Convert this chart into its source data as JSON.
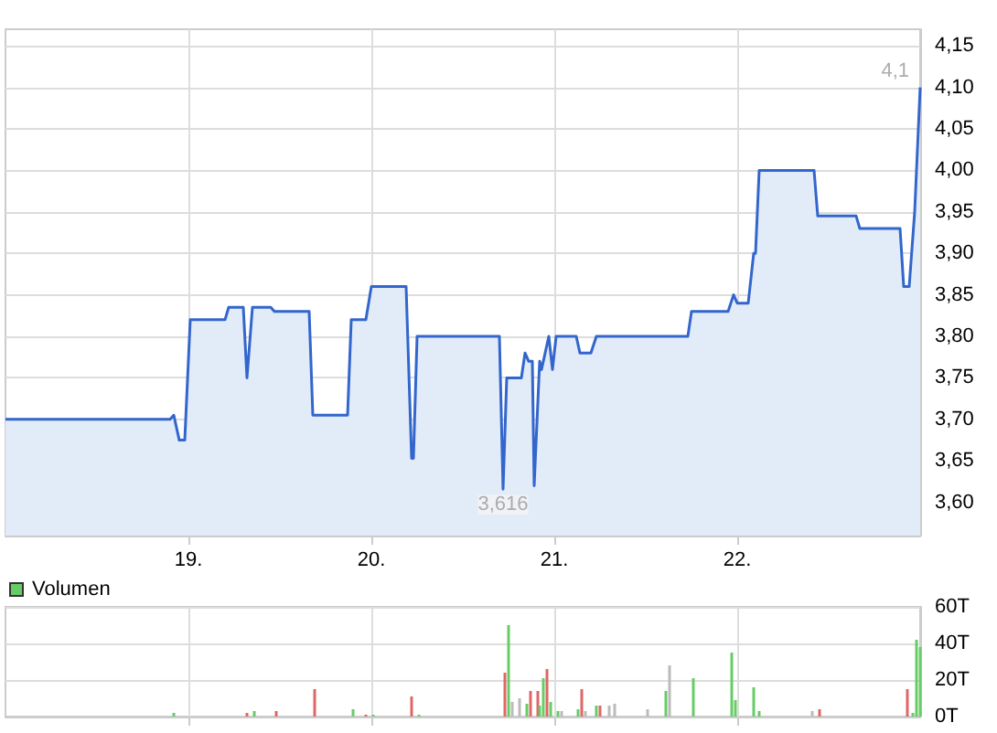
{
  "chart_data": [
    {
      "type": "area",
      "color": "#3366cc",
      "x": [
        18.0,
        18.9,
        18.92,
        18.95,
        18.98,
        19.01,
        19.2,
        19.22,
        19.3,
        19.32,
        19.35,
        19.45,
        19.47,
        19.66,
        19.68,
        19.87,
        19.89,
        19.97,
        20.0,
        20.19,
        20.22,
        20.23,
        20.25,
        20.7,
        20.72,
        20.74,
        20.82,
        20.84,
        20.86,
        20.88,
        20.89,
        20.92,
        20.93,
        20.97,
        20.99,
        21.01,
        21.12,
        21.14,
        21.2,
        21.23,
        21.59,
        21.6,
        21.73,
        21.75,
        21.95,
        21.98,
        22.0,
        22.06,
        22.09,
        22.1,
        22.12,
        22.42,
        22.44,
        22.65,
        22.67,
        22.89,
        22.91,
        22.94,
        22.97,
        23.0
      ],
      "values": [
        3.7,
        3.7,
        3.705,
        3.675,
        3.675,
        3.82,
        3.82,
        3.835,
        3.835,
        3.75,
        3.835,
        3.835,
        3.83,
        3.83,
        3.705,
        3.705,
        3.82,
        3.82,
        3.86,
        3.86,
        3.653,
        3.653,
        3.8,
        3.8,
        3.616,
        3.75,
        3.75,
        3.78,
        3.77,
        3.77,
        3.62,
        3.77,
        3.76,
        3.8,
        3.76,
        3.8,
        3.8,
        3.78,
        3.78,
        3.8,
        3.8,
        3.8,
        3.8,
        3.83,
        3.83,
        3.85,
        3.84,
        3.84,
        3.9,
        3.9,
        4.0,
        4.0,
        3.945,
        3.945,
        3.93,
        3.93,
        3.86,
        3.86,
        3.95,
        4.1
      ],
      "xlim": [
        18,
        23
      ],
      "xticks": [
        {
          "value": 19,
          "label": "19."
        },
        {
          "value": 20,
          "label": "20."
        },
        {
          "value": 21,
          "label": "21."
        },
        {
          "value": 22,
          "label": "22."
        }
      ],
      "ylim": [
        3.56,
        4.17
      ],
      "yticks": [
        {
          "value": 3.6,
          "label": "3,60"
        },
        {
          "value": 3.65,
          "label": "3,65"
        },
        {
          "value": 3.7,
          "label": "3,70"
        },
        {
          "value": 3.75,
          "label": "3,75"
        },
        {
          "value": 3.8,
          "label": "3,80"
        },
        {
          "value": 3.85,
          "label": "3,85"
        },
        {
          "value": 3.9,
          "label": "3,90"
        },
        {
          "value": 3.95,
          "label": "3,95"
        },
        {
          "value": 4.0,
          "label": "4,00"
        },
        {
          "value": 4.05,
          "label": "4,05"
        },
        {
          "value": 4.1,
          "label": "4,10"
        },
        {
          "value": 4.15,
          "label": "4,15"
        }
      ],
      "grid": true,
      "annotations": [
        {
          "text": "4,1",
          "x": 23.0,
          "y": 4.1
        },
        {
          "text": "3,616",
          "x": 20.72,
          "y": 3.616
        }
      ]
    },
    {
      "type": "bar",
      "legend": "top left",
      "tick_labels": "y",
      "series": [
        {
          "name": "Volumen",
          "color": "#66cc66",
          "x": [
            18.92,
            19.32,
            19.36,
            19.48,
            19.69,
            19.9,
            19.97,
            20.01,
            20.22,
            20.26,
            20.73,
            20.75,
            20.77,
            20.81,
            20.85,
            20.87,
            20.91,
            20.92,
            20.94,
            20.96,
            20.98,
            21.02,
            21.04,
            21.13,
            21.15,
            21.17,
            21.23,
            21.25,
            21.3,
            21.33,
            21.51,
            21.61,
            21.63,
            21.76,
            21.97,
            21.99,
            22.09,
            22.12,
            22.41,
            22.45,
            22.93,
            22.96,
            22.98,
            23.0
          ],
          "values": [
            2,
            2,
            3,
            3,
            15,
            4,
            1,
            1,
            11,
            1,
            24,
            50,
            8,
            10,
            7,
            14,
            14,
            6,
            21,
            26,
            8,
            3,
            3,
            4,
            15,
            3,
            6,
            6,
            6,
            7,
            4,
            14,
            28,
            21,
            35,
            9,
            16,
            3,
            3,
            4,
            15,
            2,
            42,
            38
          ],
          "colors": [
            "#66cc66",
            "#e06666",
            "#66cc66",
            "#e06666",
            "#e06666",
            "#66cc66",
            "#e06666",
            "#66cc66",
            "#e06666",
            "#66cc66",
            "#e06666",
            "#66cc66",
            "#bbbbbb",
            "#bbbbbb",
            "#66cc66",
            "#e06666",
            "#e06666",
            "#66cc66",
            "#66cc66",
            "#e06666",
            "#66cc66",
            "#66cc66",
            "#bbbbbb",
            "#66cc66",
            "#e06666",
            "#bbbbbb",
            "#66cc66",
            "#e06666",
            "#bbbbbb",
            "#bbbbbb",
            "#bbbbbb",
            "#66cc66",
            "#bbbbbb",
            "#66cc66",
            "#66cc66",
            "#66cc66",
            "#66cc66",
            "#66cc66",
            "#bbbbbb",
            "#e06666",
            "#e06666",
            "#66cc66",
            "#66cc66",
            "#66cc66"
          ]
        }
      ],
      "xlim": [
        18,
        23
      ],
      "xticks": [
        19,
        20,
        21,
        22
      ],
      "ylim": [
        0,
        60
      ],
      "yticks": [
        {
          "value": 0,
          "label": "0T"
        },
        {
          "value": 20,
          "label": "20T"
        },
        {
          "value": 40,
          "label": "40T"
        },
        {
          "value": 60,
          "label": "60T"
        }
      ],
      "grid": true
    }
  ]
}
